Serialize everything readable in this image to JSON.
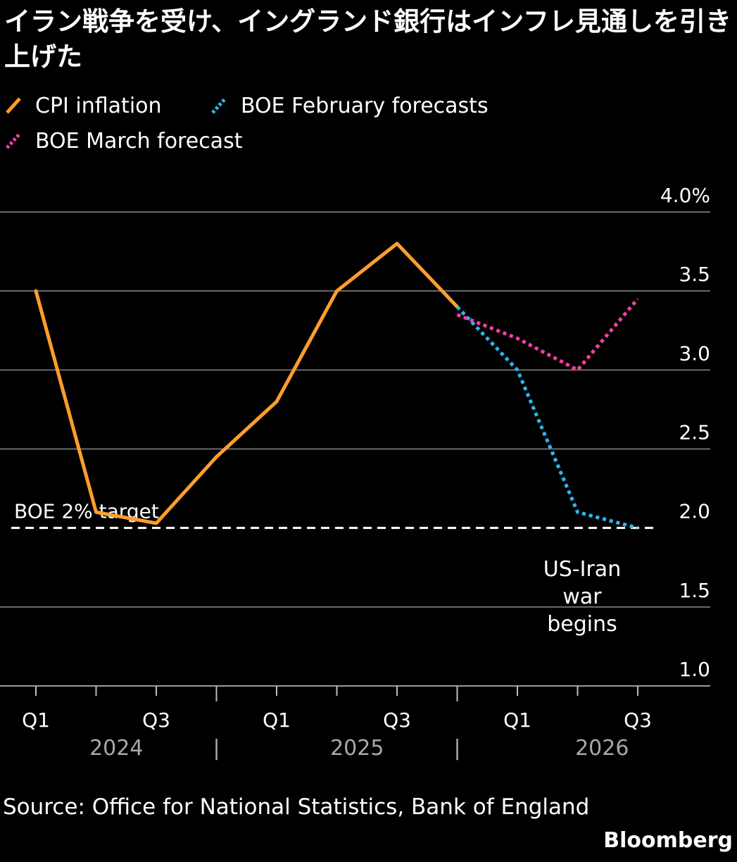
{
  "title": "イラン戦争を受け、イングランド銀行はインフレ見通しを引き上げた",
  "legend": [
    {
      "label": "CPI inflation",
      "color": "#ff9e2c",
      "style": "solid"
    },
    {
      "label": "BOE February forecasts",
      "color": "#2ab8f0",
      "style": "dotted"
    },
    {
      "label": "BOE March forecast",
      "color": "#ff3ca8",
      "style": "dotted"
    }
  ],
  "chart_data": {
    "type": "line",
    "x_categories": [
      "2024-Q1",
      "2024-Q2",
      "2024-Q3",
      "2024-Q4",
      "2025-Q1",
      "2025-Q2",
      "2025-Q3",
      "2025-Q4",
      "2026-Q1",
      "2026-Q2",
      "2026-Q3"
    ],
    "x_tick_labels": [
      "Q1",
      "",
      "Q3",
      "",
      "Q1",
      "",
      "Q3",
      "",
      "Q1",
      "",
      "Q3"
    ],
    "year_labels": [
      "2024",
      "2025",
      "2026"
    ],
    "year_dividers": [
      "|",
      "|"
    ],
    "series": [
      {
        "name": "CPI inflation",
        "color": "#ff9e2c",
        "dash": "solid",
        "x": [
          "2024-Q1",
          "2024-Q2",
          "2024-Q3",
          "2024-Q4",
          "2025-Q1",
          "2025-Q2",
          "2025-Q3",
          "2025-Q4"
        ],
        "values": [
          3.5,
          2.1,
          2.03,
          2.45,
          2.8,
          3.5,
          3.8,
          3.4
        ]
      },
      {
        "name": "BOE February forecasts",
        "color": "#2ab8f0",
        "dash": "dotted",
        "x": [
          "2025-Q4",
          "2026-Q1",
          "2026-Q2",
          "2026-Q3"
        ],
        "values": [
          3.4,
          3.0,
          2.1,
          2.0
        ]
      },
      {
        "name": "BOE March forecast",
        "color": "#ff3ca8",
        "dash": "dotted",
        "x": [
          "2025-Q4",
          "2026-Q1",
          "2026-Q2",
          "2026-Q3"
        ],
        "values": [
          3.35,
          3.2,
          3.0,
          3.45
        ]
      }
    ],
    "reference_line": {
      "label": "BOE 2% target",
      "value": 2.0,
      "color": "#ffffff",
      "dash": "dashed"
    },
    "annotation": {
      "lines": [
        "US-Iran",
        "war",
        "begins"
      ]
    },
    "y_ticks": [
      {
        "value": 1.0,
        "label": "1.0"
      },
      {
        "value": 1.5,
        "label": "1.5"
      },
      {
        "value": 2.0,
        "label": "2.0"
      },
      {
        "value": 2.5,
        "label": "2.5"
      },
      {
        "value": 3.0,
        "label": "3.0"
      },
      {
        "value": 3.5,
        "label": "3.5"
      },
      {
        "value": 4.0,
        "label": "4.0%"
      }
    ],
    "ylim": [
      1.0,
      4.0
    ],
    "grid": true,
    "legend_position": "top-left"
  },
  "footer": {
    "source": "Source: Office for National Statistics, Bank of England",
    "brand": "Bloomberg"
  }
}
